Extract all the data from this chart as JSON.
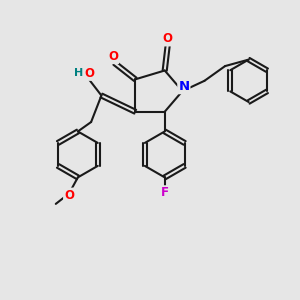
{
  "bg_color": "#e6e6e6",
  "bond_color": "#1a1a1a",
  "bond_width": 1.5,
  "atom_colors": {
    "O": "#ff0000",
    "N": "#0000ff",
    "F": "#cc00cc",
    "H": "#008080",
    "C": "#1a1a1a"
  },
  "font_size": 8.5,
  "figsize": [
    3.0,
    3.0
  ],
  "dpi": 100
}
